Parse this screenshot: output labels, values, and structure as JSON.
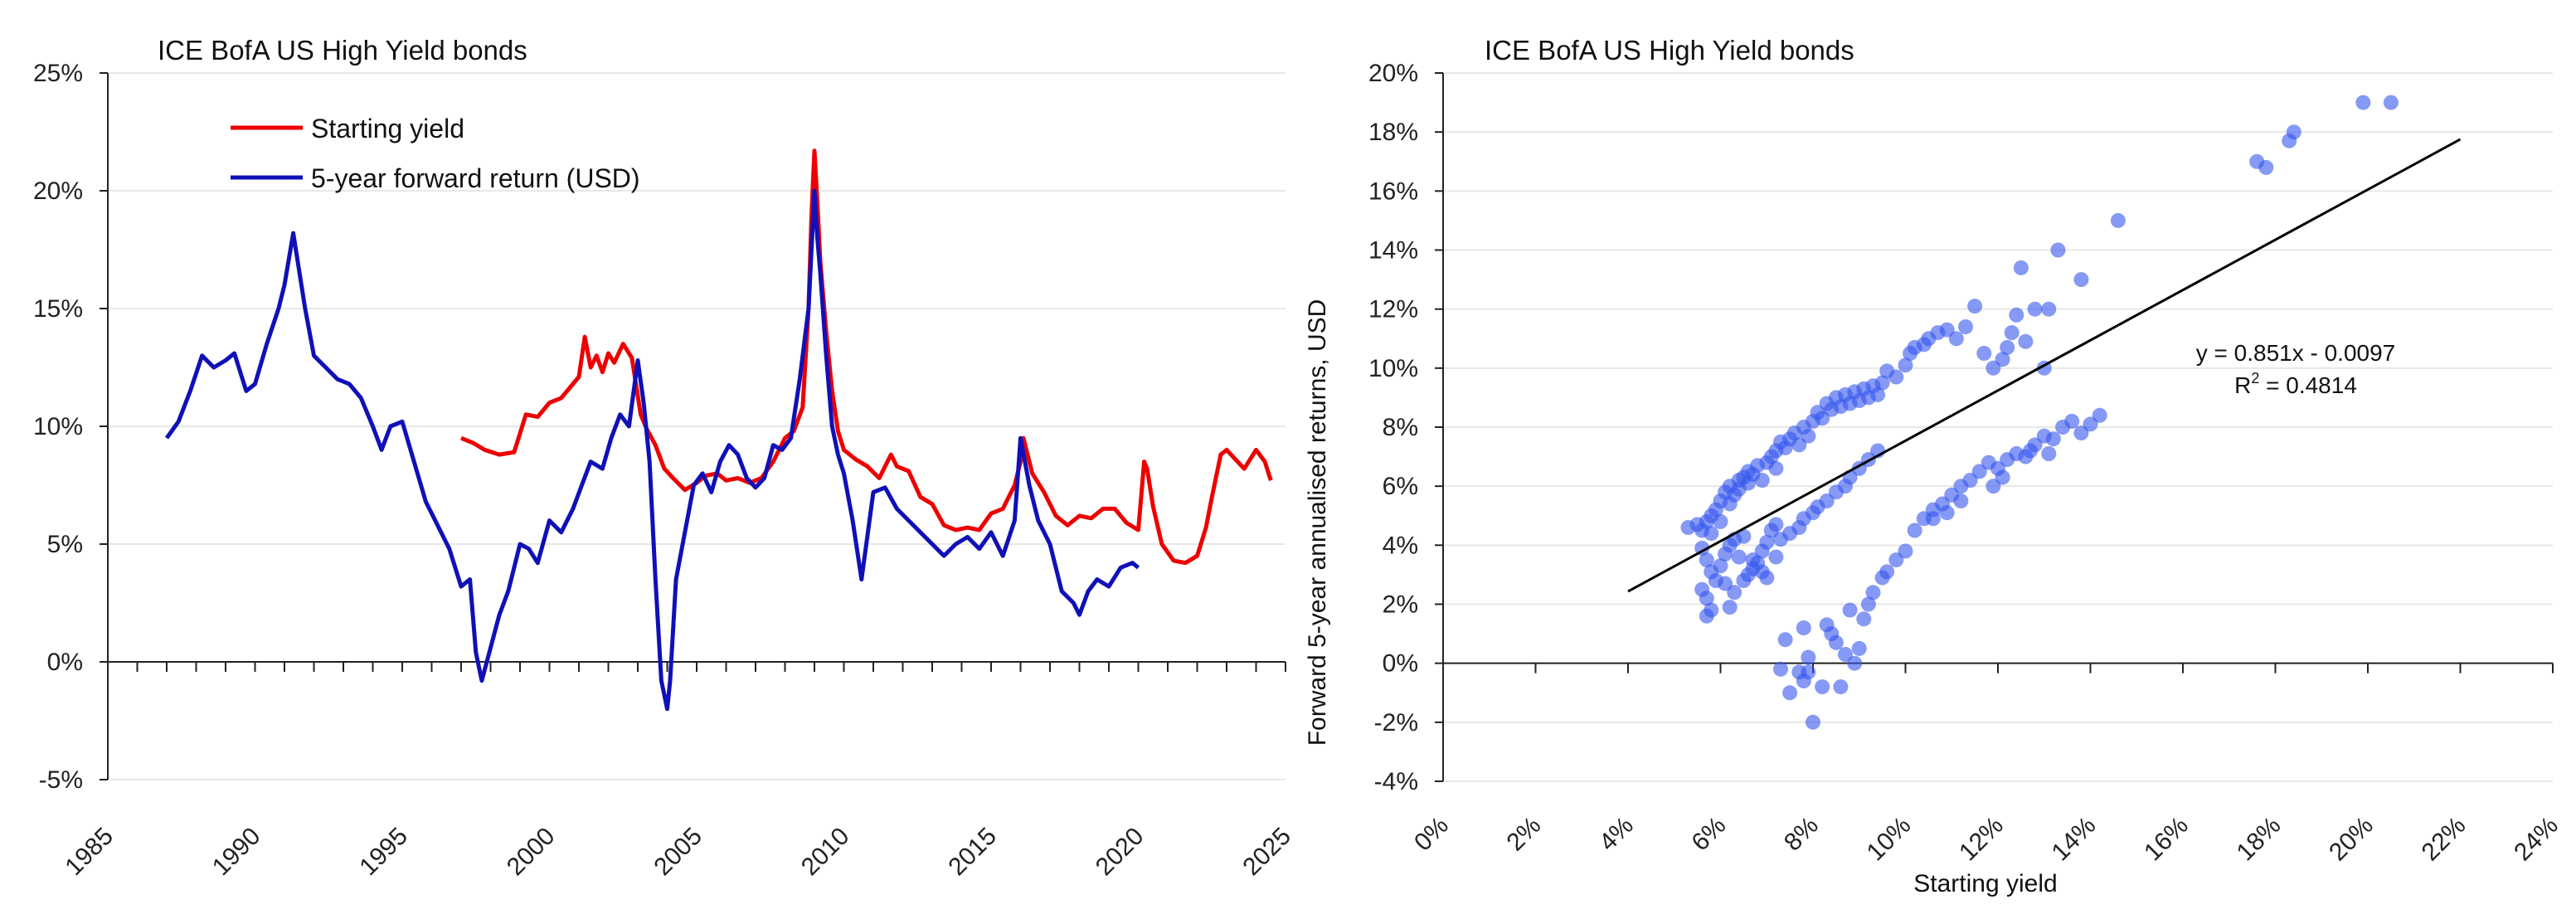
{
  "colors": {
    "red": "#ee0000",
    "blue": "#1010b8",
    "dot": "#3355ee",
    "grid": "#e8e8e8",
    "axis": "#222222",
    "fit": "#000000"
  },
  "chart_data": [
    {
      "type": "line",
      "title": "ICE BofA US High Yield bonds",
      "xlabel": "",
      "ylabel": "",
      "xlim": [
        1985,
        2025
      ],
      "ylim": [
        -0.05,
        0.25
      ],
      "xticks": [
        1985,
        1990,
        1995,
        2000,
        2005,
        2010,
        2015,
        2020,
        2025
      ],
      "yticks": [
        -0.05,
        0,
        0.05,
        0.1,
        0.15,
        0.2,
        0.25
      ],
      "xtick_labels": [
        "1985",
        "1990",
        "1995",
        "2000",
        "2005",
        "2010",
        "2015",
        "2020",
        "2025"
      ],
      "ytick_labels": [
        "-5%",
        "0%",
        "5%",
        "10%",
        "15%",
        "20%",
        "25%"
      ],
      "legend": [
        "Starting yield",
        "5-year forward return (USD)"
      ],
      "series": [
        {
          "name": "Starting yield",
          "color": "red",
          "x": [
            1997.0,
            1997.4,
            1997.8,
            1998.3,
            1998.8,
            1999.2,
            1999.6,
            2000.0,
            2000.4,
            2000.8,
            2001.0,
            2001.2,
            2001.4,
            2001.6,
            2001.8,
            2002.0,
            2002.2,
            2002.5,
            2002.8,
            2003.1,
            2003.3,
            2003.6,
            2003.9,
            2004.2,
            2004.6,
            2005.0,
            2005.3,
            2005.7,
            2006.0,
            2006.4,
            2006.8,
            2007.2,
            2007.6,
            2008.0,
            2008.3,
            2008.6,
            2008.8,
            2008.9,
            2009.0,
            2009.1,
            2009.2,
            2009.4,
            2009.6,
            2009.8,
            2010.0,
            2010.4,
            2010.8,
            2011.2,
            2011.6,
            2011.8,
            2012.2,
            2012.6,
            2013.0,
            2013.4,
            2013.8,
            2014.2,
            2014.6,
            2015.0,
            2015.4,
            2015.8,
            2016.0,
            2016.1,
            2016.4,
            2016.8,
            2017.2,
            2017.6,
            2018.0,
            2018.4,
            2018.8,
            2019.2,
            2019.6,
            2020.0,
            2020.2,
            2020.3,
            2020.5,
            2020.8,
            2021.2,
            2021.6,
            2022.0,
            2022.3,
            2022.5,
            2022.8,
            2023.0,
            2023.3,
            2023.6,
            2024.0,
            2024.3,
            2024.5
          ],
          "values": [
            0.095,
            0.093,
            0.09,
            0.088,
            0.089,
            0.105,
            0.104,
            0.11,
            0.112,
            0.118,
            0.121,
            0.138,
            0.125,
            0.13,
            0.123,
            0.131,
            0.127,
            0.135,
            0.129,
            0.105,
            0.099,
            0.092,
            0.082,
            0.078,
            0.073,
            0.076,
            0.079,
            0.08,
            0.077,
            0.078,
            0.076,
            0.078,
            0.085,
            0.095,
            0.098,
            0.108,
            0.15,
            0.19,
            0.217,
            0.195,
            0.17,
            0.14,
            0.115,
            0.098,
            0.09,
            0.086,
            0.083,
            0.078,
            0.088,
            0.083,
            0.081,
            0.07,
            0.067,
            0.058,
            0.056,
            0.057,
            0.056,
            0.063,
            0.065,
            0.075,
            0.085,
            0.095,
            0.08,
            0.072,
            0.062,
            0.058,
            0.062,
            0.061,
            0.065,
            0.065,
            0.059,
            0.056,
            0.085,
            0.082,
            0.066,
            0.05,
            0.043,
            0.042,
            0.045,
            0.057,
            0.07,
            0.088,
            0.09,
            0.086,
            0.082,
            0.09,
            0.085,
            0.077
          ]
        },
        {
          "name": "5-year forward return (USD)",
          "color": "blue",
          "x": [
            1987.0,
            1987.4,
            1987.8,
            1988.2,
            1988.6,
            1989.0,
            1989.3,
            1989.7,
            1990.0,
            1990.4,
            1990.8,
            1991.0,
            1991.3,
            1991.7,
            1992.0,
            1992.4,
            1992.8,
            1993.2,
            1993.6,
            1994.0,
            1994.3,
            1994.6,
            1995.0,
            1995.4,
            1995.8,
            1996.2,
            1996.6,
            1997.0,
            1997.3,
            1997.5,
            1997.7,
            1998.0,
            1998.3,
            1998.6,
            1999.0,
            1999.3,
            1999.6,
            2000.0,
            2000.4,
            2000.8,
            2001.1,
            2001.4,
            2001.8,
            2002.1,
            2002.4,
            2002.7,
            2003.0,
            2003.2,
            2003.4,
            2003.6,
            2003.8,
            2004.0,
            2004.1,
            2004.3,
            2004.6,
            2004.9,
            2005.2,
            2005.5,
            2005.8,
            2006.1,
            2006.4,
            2006.7,
            2007.0,
            2007.3,
            2007.6,
            2007.9,
            2008.2,
            2008.5,
            2008.8,
            2009.0,
            2009.1,
            2009.2,
            2009.4,
            2009.6,
            2009.8,
            2010.0,
            2010.3,
            2010.6,
            2011.0,
            2011.4,
            2011.8,
            2012.2,
            2012.6,
            2013.0,
            2013.4,
            2013.8,
            2014.2,
            2014.6,
            2015.0,
            2015.4,
            2015.8,
            2016.0,
            2016.3,
            2016.6,
            2017.0,
            2017.4,
            2017.8,
            2018.0,
            2018.3,
            2018.6,
            2019.0,
            2019.4,
            2019.8,
            2020.0
          ],
          "values": [
            0.095,
            0.102,
            0.115,
            0.13,
            0.125,
            0.128,
            0.131,
            0.115,
            0.118,
            0.135,
            0.15,
            0.16,
            0.182,
            0.15,
            0.13,
            0.125,
            0.12,
            0.118,
            0.112,
            0.1,
            0.09,
            0.1,
            0.102,
            0.085,
            0.068,
            0.058,
            0.048,
            0.032,
            0.035,
            0.004,
            -0.008,
            0.006,
            0.02,
            0.03,
            0.05,
            0.048,
            0.042,
            0.06,
            0.055,
            0.065,
            0.075,
            0.085,
            0.082,
            0.095,
            0.105,
            0.1,
            0.128,
            0.11,
            0.085,
            0.035,
            -0.008,
            -0.02,
            -0.008,
            0.035,
            0.055,
            0.075,
            0.08,
            0.072,
            0.085,
            0.092,
            0.088,
            0.078,
            0.074,
            0.078,
            0.092,
            0.09,
            0.095,
            0.12,
            0.15,
            0.2,
            0.18,
            0.165,
            0.13,
            0.1,
            0.088,
            0.08,
            0.06,
            0.035,
            0.072,
            0.074,
            0.065,
            0.06,
            0.055,
            0.05,
            0.045,
            0.05,
            0.053,
            0.048,
            0.055,
            0.045,
            0.06,
            0.095,
            0.075,
            0.06,
            0.05,
            0.03,
            0.025,
            0.02,
            0.03,
            0.035,
            0.032,
            0.04,
            0.042,
            0.04
          ]
        }
      ]
    },
    {
      "type": "scatter",
      "title": "ICE BofA US High Yield bonds",
      "xlabel": "Starting yield",
      "ylabel": "Forward 5-year annualised returns, USD",
      "xlim": [
        0,
        0.24
      ],
      "ylim": [
        -0.04,
        0.2
      ],
      "xticks": [
        0,
        0.02,
        0.04,
        0.06,
        0.08,
        0.1,
        0.12,
        0.14,
        0.16,
        0.18,
        0.2,
        0.22,
        0.24
      ],
      "yticks": [
        -0.04,
        -0.02,
        0,
        0.02,
        0.04,
        0.06,
        0.08,
        0.1,
        0.12,
        0.14,
        0.16,
        0.18,
        0.2
      ],
      "xtick_labels": [
        "0%",
        "2%",
        "4%",
        "6%",
        "8%",
        "10%",
        "12%",
        "14%",
        "16%",
        "18%",
        "20%",
        "22%",
        "24%"
      ],
      "ytick_labels": [
        "-4%",
        "-2%",
        "0%",
        "2%",
        "4%",
        "6%",
        "8%",
        "10%",
        "12%",
        "14%",
        "16%",
        "18%",
        "20%"
      ],
      "trendline": {
        "slope": 0.851,
        "intercept": -0.0097,
        "x_range": [
          0.04,
          0.22
        ]
      },
      "annotation": {
        "equation": "y = 0.851x - 0.0097",
        "r2_prefix": "R",
        "r2_sup": "2",
        "r2_suffix": " = 0.4814"
      },
      "points": [
        [
          0.053,
          0.046
        ],
        [
          0.055,
          0.047
        ],
        [
          0.056,
          0.045
        ],
        [
          0.057,
          0.048
        ],
        [
          0.058,
          0.05
        ],
        [
          0.058,
          0.044
        ],
        [
          0.059,
          0.052
        ],
        [
          0.06,
          0.055
        ],
        [
          0.06,
          0.048
        ],
        [
          0.061,
          0.058
        ],
        [
          0.062,
          0.06
        ],
        [
          0.062,
          0.054
        ],
        [
          0.063,
          0.057
        ],
        [
          0.064,
          0.062
        ],
        [
          0.064,
          0.059
        ],
        [
          0.065,
          0.063
        ],
        [
          0.066,
          0.061
        ],
        [
          0.066,
          0.065
        ],
        [
          0.067,
          0.064
        ],
        [
          0.068,
          0.067
        ],
        [
          0.069,
          0.062
        ],
        [
          0.07,
          0.068
        ],
        [
          0.071,
          0.07
        ],
        [
          0.072,
          0.072
        ],
        [
          0.072,
          0.066
        ],
        [
          0.073,
          0.075
        ],
        [
          0.074,
          0.073
        ],
        [
          0.075,
          0.076
        ],
        [
          0.076,
          0.078
        ],
        [
          0.077,
          0.074
        ],
        [
          0.078,
          0.08
        ],
        [
          0.079,
          0.077
        ],
        [
          0.08,
          0.082
        ],
        [
          0.081,
          0.085
        ],
        [
          0.082,
          0.083
        ],
        [
          0.083,
          0.088
        ],
        [
          0.084,
          0.086
        ],
        [
          0.085,
          0.09
        ],
        [
          0.086,
          0.087
        ],
        [
          0.087,
          0.091
        ],
        [
          0.088,
          0.088
        ],
        [
          0.089,
          0.092
        ],
        [
          0.09,
          0.089
        ],
        [
          0.091,
          0.093
        ],
        [
          0.092,
          0.09
        ],
        [
          0.093,
          0.094
        ],
        [
          0.094,
          0.091
        ],
        [
          0.095,
          0.095
        ],
        [
          0.096,
          0.099
        ],
        [
          0.098,
          0.097
        ],
        [
          0.1,
          0.101
        ],
        [
          0.101,
          0.105
        ],
        [
          0.102,
          0.107
        ],
        [
          0.104,
          0.108
        ],
        [
          0.105,
          0.11
        ],
        [
          0.107,
          0.112
        ],
        [
          0.109,
          0.113
        ],
        [
          0.111,
          0.11
        ],
        [
          0.113,
          0.114
        ],
        [
          0.115,
          0.121
        ],
        [
          0.117,
          0.105
        ],
        [
          0.119,
          0.1
        ],
        [
          0.121,
          0.103
        ],
        [
          0.122,
          0.107
        ],
        [
          0.123,
          0.112
        ],
        [
          0.124,
          0.118
        ],
        [
          0.126,
          0.109
        ],
        [
          0.128,
          0.12
        ],
        [
          0.13,
          0.1
        ],
        [
          0.131,
          0.12
        ],
        [
          0.056,
          0.039
        ],
        [
          0.057,
          0.035
        ],
        [
          0.058,
          0.031
        ],
        [
          0.059,
          0.028
        ],
        [
          0.06,
          0.033
        ],
        [
          0.061,
          0.037
        ],
        [
          0.062,
          0.04
        ],
        [
          0.063,
          0.042
        ],
        [
          0.064,
          0.036
        ],
        [
          0.065,
          0.043
        ],
        [
          0.066,
          0.03
        ],
        [
          0.067,
          0.032
        ],
        [
          0.068,
          0.034
        ],
        [
          0.069,
          0.038
        ],
        [
          0.07,
          0.041
        ],
        [
          0.071,
          0.045
        ],
        [
          0.072,
          0.047
        ],
        [
          0.073,
          0.042
        ],
        [
          0.075,
          0.044
        ],
        [
          0.077,
          0.046
        ],
        [
          0.078,
          0.049
        ],
        [
          0.08,
          0.051
        ],
        [
          0.081,
          0.053
        ],
        [
          0.083,
          0.055
        ],
        [
          0.085,
          0.058
        ],
        [
          0.087,
          0.06
        ],
        [
          0.088,
          0.063
        ],
        [
          0.09,
          0.066
        ],
        [
          0.092,
          0.069
        ],
        [
          0.094,
          0.072
        ],
        [
          0.056,
          0.025
        ],
        [
          0.057,
          0.022
        ],
        [
          0.058,
          0.018
        ],
        [
          0.061,
          0.027
        ],
        [
          0.063,
          0.024
        ],
        [
          0.065,
          0.028
        ],
        [
          0.067,
          0.035
        ],
        [
          0.069,
          0.031
        ],
        [
          0.07,
          0.029
        ],
        [
          0.072,
          0.036
        ],
        [
          0.057,
          0.016
        ],
        [
          0.062,
          0.019
        ],
        [
          0.074,
          0.008
        ],
        [
          0.078,
          -0.006
        ],
        [
          0.079,
          -0.003
        ],
        [
          0.08,
          -0.02
        ],
        [
          0.082,
          -0.008
        ],
        [
          0.083,
          0.013
        ],
        [
          0.084,
          0.01
        ],
        [
          0.085,
          0.007
        ],
        [
          0.086,
          -0.008
        ],
        [
          0.087,
          0.003
        ],
        [
          0.088,
          0.018
        ],
        [
          0.089,
          0.0
        ],
        [
          0.09,
          0.005
        ],
        [
          0.091,
          0.015
        ],
        [
          0.092,
          0.02
        ],
        [
          0.093,
          0.024
        ],
        [
          0.095,
          0.029
        ],
        [
          0.096,
          0.031
        ],
        [
          0.073,
          -0.002
        ],
        [
          0.075,
          -0.01
        ],
        [
          0.077,
          -0.003
        ],
        [
          0.078,
          0.012
        ],
        [
          0.079,
          0.002
        ],
        [
          0.098,
          0.035
        ],
        [
          0.1,
          0.038
        ],
        [
          0.102,
          0.045
        ],
        [
          0.104,
          0.049
        ],
        [
          0.106,
          0.052
        ],
        [
          0.108,
          0.054
        ],
        [
          0.11,
          0.057
        ],
        [
          0.112,
          0.06
        ],
        [
          0.114,
          0.062
        ],
        [
          0.116,
          0.065
        ],
        [
          0.118,
          0.068
        ],
        [
          0.12,
          0.066
        ],
        [
          0.122,
          0.069
        ],
        [
          0.124,
          0.071
        ],
        [
          0.126,
          0.07
        ],
        [
          0.128,
          0.074
        ],
        [
          0.13,
          0.077
        ],
        [
          0.132,
          0.076
        ],
        [
          0.134,
          0.08
        ],
        [
          0.136,
          0.082
        ],
        [
          0.138,
          0.078
        ],
        [
          0.14,
          0.081
        ],
        [
          0.142,
          0.084
        ],
        [
          0.125,
          0.134
        ],
        [
          0.133,
          0.14
        ],
        [
          0.138,
          0.13
        ],
        [
          0.146,
          0.15
        ],
        [
          0.176,
          0.17
        ],
        [
          0.178,
          0.168
        ],
        [
          0.183,
          0.177
        ],
        [
          0.184,
          0.18
        ],
        [
          0.199,
          0.19
        ],
        [
          0.205,
          0.19
        ],
        [
          0.106,
          0.049
        ],
        [
          0.109,
          0.051
        ],
        [
          0.112,
          0.055
        ],
        [
          0.119,
          0.06
        ],
        [
          0.121,
          0.063
        ],
        [
          0.127,
          0.072
        ],
        [
          0.131,
          0.071
        ]
      ]
    }
  ]
}
